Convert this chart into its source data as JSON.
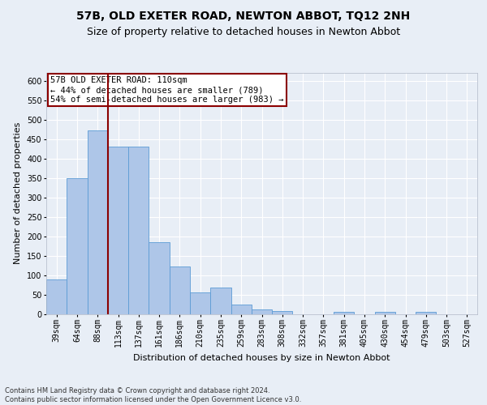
{
  "title1": "57B, OLD EXETER ROAD, NEWTON ABBOT, TQ12 2NH",
  "title2": "Size of property relative to detached houses in Newton Abbot",
  "xlabel": "Distribution of detached houses by size in Newton Abbot",
  "ylabel": "Number of detached properties",
  "categories": [
    "39sqm",
    "64sqm",
    "88sqm",
    "113sqm",
    "137sqm",
    "161sqm",
    "186sqm",
    "210sqm",
    "235sqm",
    "259sqm",
    "283sqm",
    "308sqm",
    "332sqm",
    "357sqm",
    "381sqm",
    "405sqm",
    "430sqm",
    "454sqm",
    "479sqm",
    "503sqm",
    "527sqm"
  ],
  "values": [
    88,
    349,
    472,
    430,
    430,
    184,
    122,
    55,
    67,
    23,
    12,
    7,
    0,
    0,
    5,
    0,
    5,
    0,
    5,
    0,
    0
  ],
  "bar_color": "#aec6e8",
  "bar_edge_color": "#5b9bd5",
  "vline_color": "#8b0000",
  "vline_x": 2.5,
  "annotation_text": "57B OLD EXETER ROAD: 110sqm\n← 44% of detached houses are smaller (789)\n54% of semi-detached houses are larger (983) →",
  "annotation_box_color": "#ffffff",
  "annotation_box_edge": "#8b0000",
  "footnote": "Contains HM Land Registry data © Crown copyright and database right 2024.\nContains public sector information licensed under the Open Government Licence v3.0.",
  "ylim": [
    0,
    620
  ],
  "yticks": [
    0,
    50,
    100,
    150,
    200,
    250,
    300,
    350,
    400,
    450,
    500,
    550,
    600
  ],
  "bg_color": "#e8eef6",
  "plot_bg_color": "#e8eef6",
  "grid_color": "#ffffff",
  "title1_fontsize": 10,
  "title2_fontsize": 9,
  "tick_fontsize": 7,
  "axis_label_fontsize": 8,
  "footnote_fontsize": 6
}
